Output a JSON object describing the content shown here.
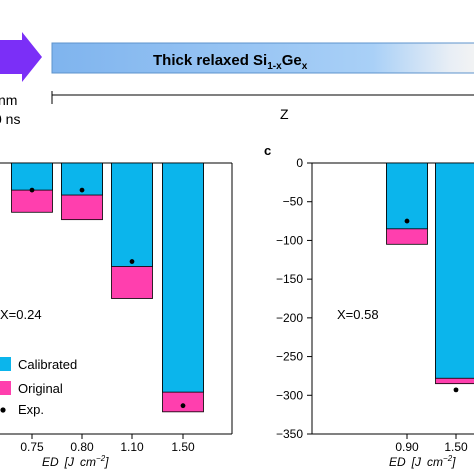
{
  "header": {
    "bar_label": "Thick relaxed Si",
    "bar_sub": "1-x",
    "bar_label_end": "Ge",
    "bar_sup": "x",
    "left_line1": "nm",
    "left_line2": "0 ns",
    "z_label": "Z",
    "arrow_color": "#7b2ff7",
    "bar_color": "#8fbff0"
  },
  "chart_data": [
    {
      "type": "bar",
      "panel": "",
      "categories": [
        "0.75",
        "0.80",
        "1.10",
        "1.50"
      ],
      "series": [
        {
          "name": "Original",
          "values": [
            -40,
            -46,
            -110,
            -202
          ],
          "color": "#ff3fae"
        },
        {
          "name": "Calibrated",
          "values": [
            -22,
            -26,
            -84,
            -186
          ],
          "color": "#0bb5ec"
        },
        {
          "name": "Exp.",
          "values": [
            -22,
            -22,
            -80,
            -197
          ],
          "color": "#000000"
        }
      ],
      "annotation": "X=0.24",
      "xlabel_parts": [
        "ED",
        "[J",
        "cm",
        "−2",
        "]"
      ],
      "ylim": [
        -220,
        0
      ],
      "legend": "bottom-left"
    },
    {
      "type": "bar",
      "panel": "c",
      "categories": [
        "0.90",
        "1.50"
      ],
      "series": [
        {
          "name": "Original",
          "values": [
            -105,
            -285
          ],
          "color": "#ff3fae"
        },
        {
          "name": "Calibrated",
          "values": [
            -85,
            -278
          ],
          "color": "#0bb5ec"
        },
        {
          "name": "Exp.",
          "values": [
            -75,
            -293
          ],
          "color": "#000000"
        }
      ],
      "annotation": "X=0.58",
      "xlabel_parts": [
        "ED",
        "[J",
        "cm",
        "−2",
        "]"
      ],
      "yticks": [
        "0",
        "−50",
        "−100",
        "−150",
        "−200",
        "−250",
        "−300",
        "−350"
      ],
      "ylim": [
        -350,
        0
      ]
    }
  ]
}
